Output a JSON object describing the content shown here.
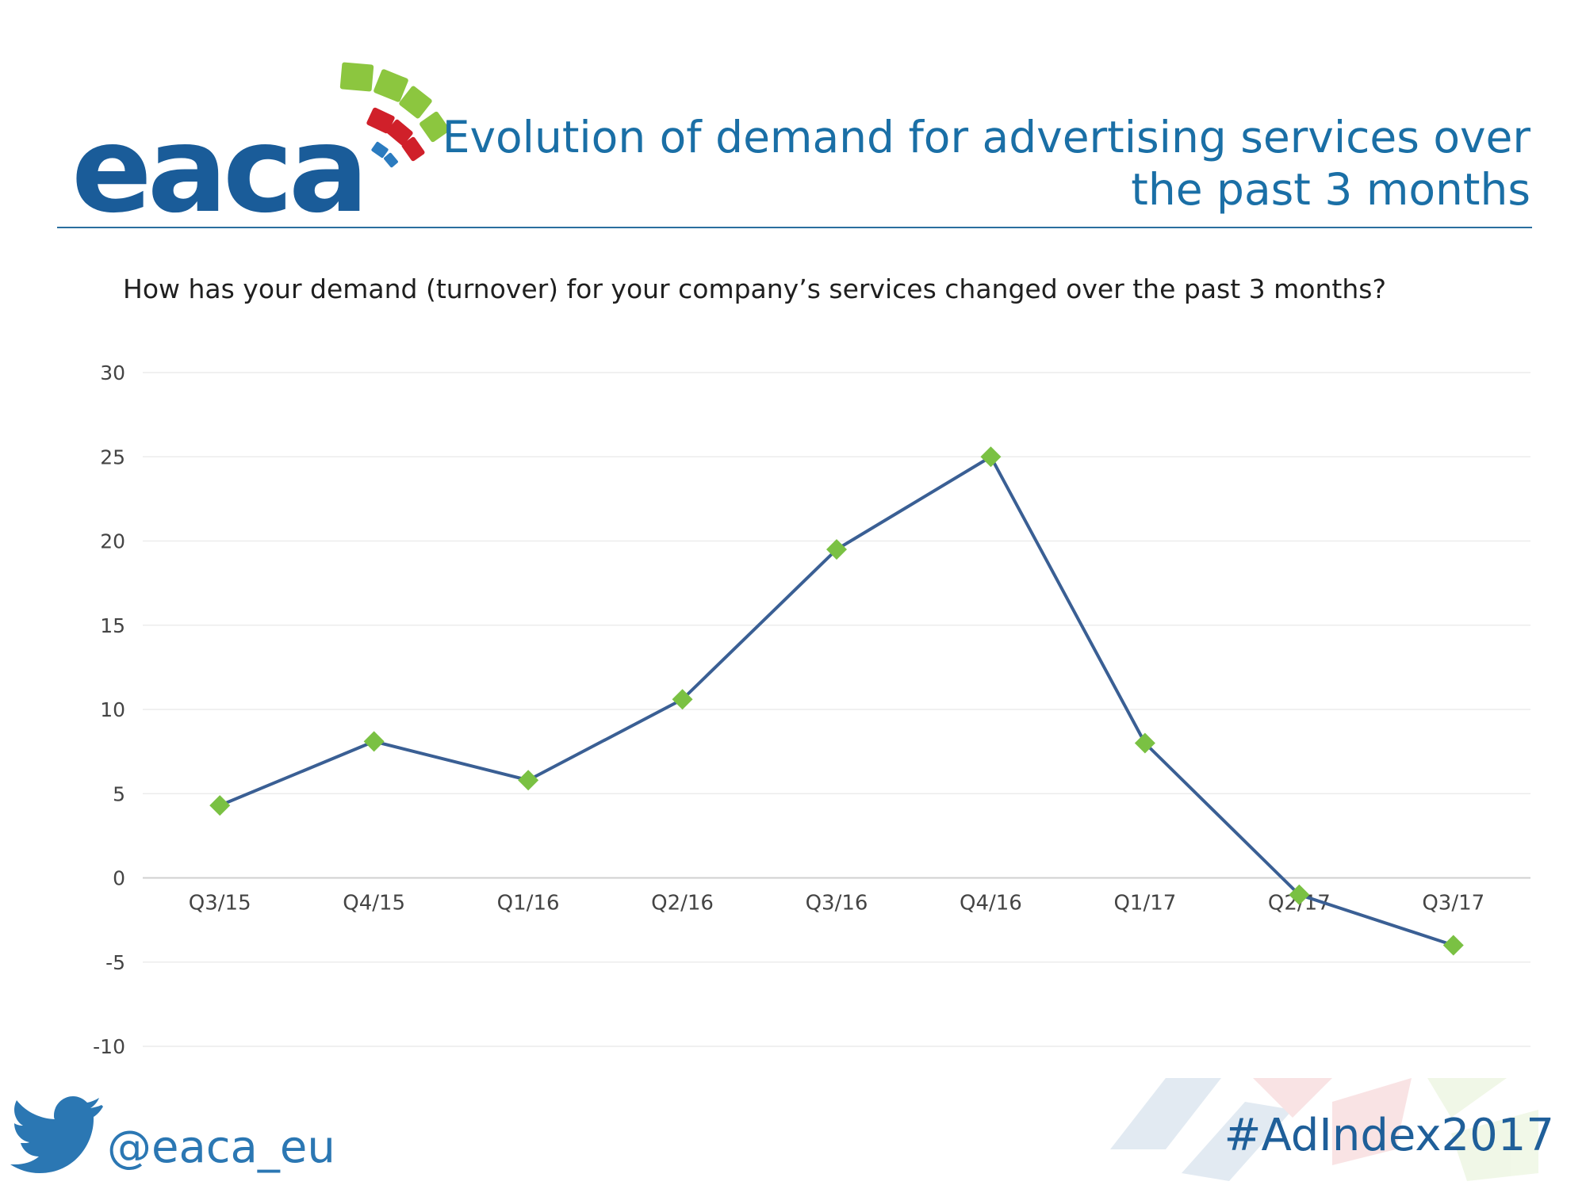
{
  "brand": {
    "logo_text": "eaca",
    "accent": "#1a5c99",
    "logo_green": "#8cc63f",
    "logo_red": "#d0202a"
  },
  "header": {
    "title_line1": "Evolution of demand for advertising services over",
    "title_line2": "the past 3 months"
  },
  "question": "How has your demand (turnover) for your company’s services changed over the past 3 months?",
  "chart_data": {
    "type": "line",
    "categories": [
      "Q3/15",
      "Q4/15",
      "Q1/16",
      "Q2/16",
      "Q3/16",
      "Q4/16",
      "Q1/17",
      "Q2/17",
      "Q3/17"
    ],
    "series": [
      {
        "values": [
          4.3,
          8.1,
          5.8,
          10.6,
          19.5,
          25,
          8,
          -1,
          -4
        ]
      }
    ],
    "ylim": [
      -10,
      30
    ],
    "yticks": [
      30,
      25,
      20,
      15,
      10,
      5,
      0,
      -5,
      -10
    ],
    "grid": true,
    "line_color": "#3a5f94",
    "marker_color": "#7ac143",
    "marker": "diamond"
  },
  "footer": {
    "twitter_icon": "twitter-bird-icon",
    "twitter_handle": "@eaca_eu",
    "hashtag": "#AdIndex2017"
  }
}
